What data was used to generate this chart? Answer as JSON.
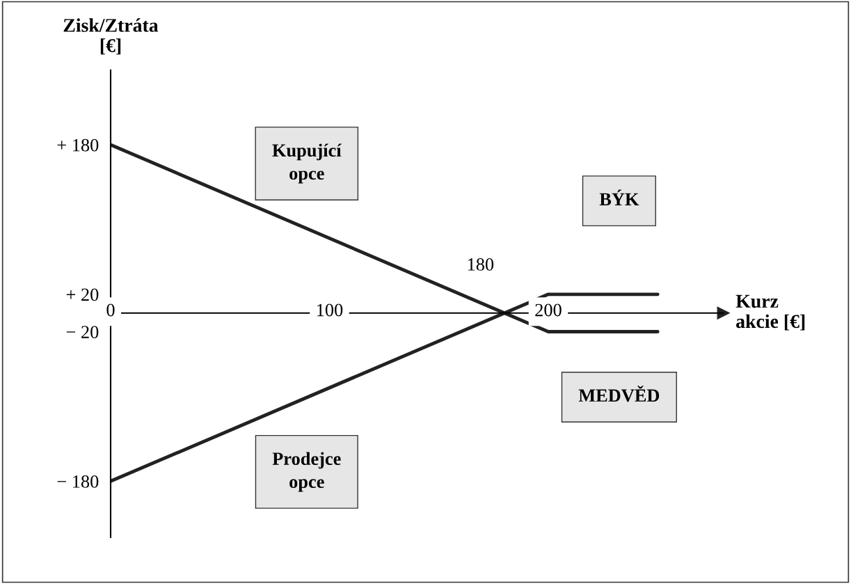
{
  "chart_data": {
    "type": "line",
    "xlabel": "Kurz\nakcie [€]",
    "ylabel": "Zisk/Ztráta\n[€]",
    "xlim": [
      0,
      280
    ],
    "ylim": [
      -240,
      260
    ],
    "xticks": [
      0,
      100,
      200
    ],
    "yticks": [
      {
        "value": 180,
        "label": "+ 180"
      },
      {
        "value": 20,
        "label": "+ 20"
      },
      {
        "value": -20,
        "label": "− 20"
      },
      {
        "value": -180,
        "label": "− 180"
      }
    ],
    "series": [
      {
        "color": "#222222",
        "x": [
          0,
          180,
          200,
          250
        ],
        "values": [
          180,
          0,
          -20,
          -20
        ]
      },
      {
        "color": "#222222",
        "x": [
          0,
          180,
          200,
          250
        ],
        "values": [
          -180,
          0,
          20,
          20
        ]
      }
    ],
    "annotations": [
      {
        "text": "180",
        "x": 180,
        "y": 0
      },
      "Kupující\nopce",
      "BÝK",
      "Prodejce\nopce",
      "MEDVĚD"
    ],
    "grid": false,
    "legend": false
  }
}
